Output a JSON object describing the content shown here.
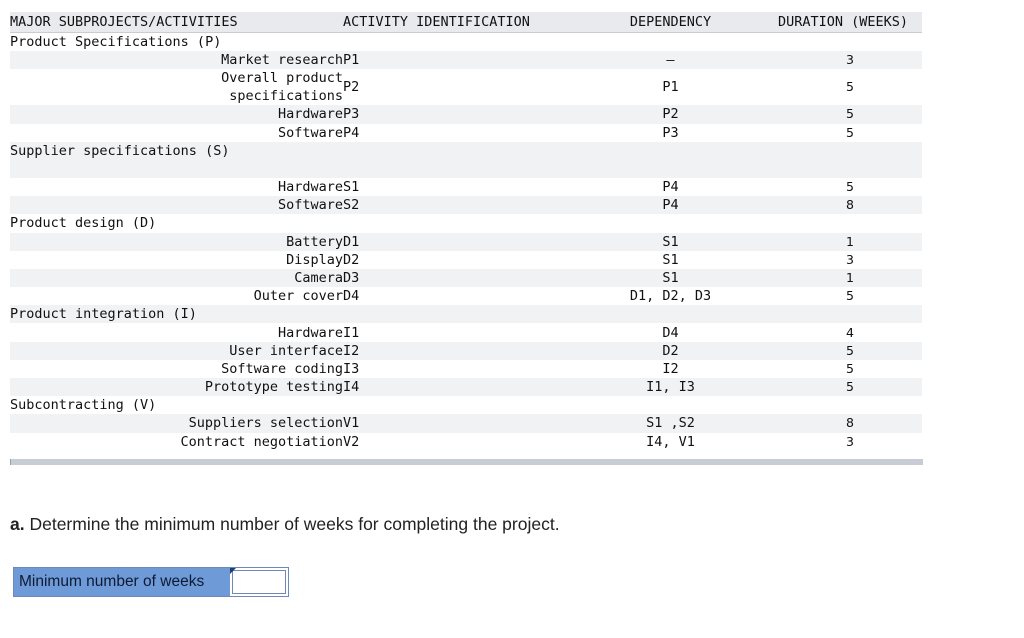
{
  "table": {
    "headers": {
      "name": "MAJOR SUBPROJECTS/ACTIVITIES",
      "id": "ACTIVITY IDENTIFICATION",
      "dependency": "DEPENDENCY",
      "duration": "DURATION (WEEKS)"
    },
    "rows": [
      {
        "type": "group",
        "name": "Product Specifications (P)",
        "id": "",
        "dep": "",
        "dur": "",
        "shade": false
      },
      {
        "type": "sub",
        "name": "Market research",
        "id": "P1",
        "dep": "—",
        "dur": "3",
        "shade": true
      },
      {
        "type": "sub2",
        "name": "Overall product specifications",
        "id": "P2",
        "dep": "P1",
        "dur": "5",
        "shade": false
      },
      {
        "type": "sub",
        "name": "Hardware",
        "id": "P3",
        "dep": "P2",
        "dur": "5",
        "shade": true
      },
      {
        "type": "sub",
        "name": "Software",
        "id": "P4",
        "dep": "P3",
        "dur": "5",
        "shade": false
      },
      {
        "type": "group",
        "name": "Supplier specifications (S)",
        "id": "",
        "dep": "",
        "dur": "",
        "shade": true
      },
      {
        "type": "blank",
        "name": "",
        "id": "",
        "dep": "",
        "dur": "",
        "shade": true
      },
      {
        "type": "sub",
        "name": "Hardware",
        "id": "S1",
        "dep": "P4",
        "dur": "5",
        "shade": false
      },
      {
        "type": "sub",
        "name": "Software",
        "id": "S2",
        "dep": "P4",
        "dur": "8",
        "shade": true
      },
      {
        "type": "group",
        "name": "Product design (D)",
        "id": "",
        "dep": "",
        "dur": "",
        "shade": false
      },
      {
        "type": "sub",
        "name": "Battery",
        "id": "D1",
        "dep": "S1",
        "dur": "1",
        "shade": true
      },
      {
        "type": "sub",
        "name": "Display",
        "id": "D2",
        "dep": "S1",
        "dur": "3",
        "shade": false
      },
      {
        "type": "sub",
        "name": "Camera",
        "id": "D3",
        "dep": "S1",
        "dur": "1",
        "shade": true
      },
      {
        "type": "sub",
        "name": "Outer cover",
        "id": "D4",
        "dep": "D1, D2, D3",
        "dur": "5",
        "shade": false
      },
      {
        "type": "group",
        "name": "Product integration (I)",
        "id": "",
        "dep": "",
        "dur": "",
        "shade": true
      },
      {
        "type": "sub",
        "name": "Hardware",
        "id": "I1",
        "dep": "D4",
        "dur": "4",
        "shade": false
      },
      {
        "type": "sub",
        "name": "User interface",
        "id": "I2",
        "dep": "D2",
        "dur": "5",
        "shade": true
      },
      {
        "type": "sub",
        "name": "Software coding",
        "id": "I3",
        "dep": "I2",
        "dur": "5",
        "shade": false
      },
      {
        "type": "sub",
        "name": "Prototype testing",
        "id": "I4",
        "dep": "I1, I3",
        "dur": "5",
        "shade": true
      },
      {
        "type": "group",
        "name": "Subcontracting (V)",
        "id": "",
        "dep": "",
        "dur": "",
        "shade": false
      },
      {
        "type": "sub",
        "name": "Suppliers selection",
        "id": "V1",
        "dep": "S1 ,S2",
        "dur": "8",
        "shade": true
      },
      {
        "type": "sub",
        "name": "Contract negotiation",
        "id": "V2",
        "dep": "I4, V1",
        "dur": "3",
        "shade": false
      }
    ]
  },
  "question": {
    "label": "a.",
    "text": " Determine the minimum number of weeks for completing the project."
  },
  "answer": {
    "label": "Minimum number of weeks",
    "value": ""
  }
}
